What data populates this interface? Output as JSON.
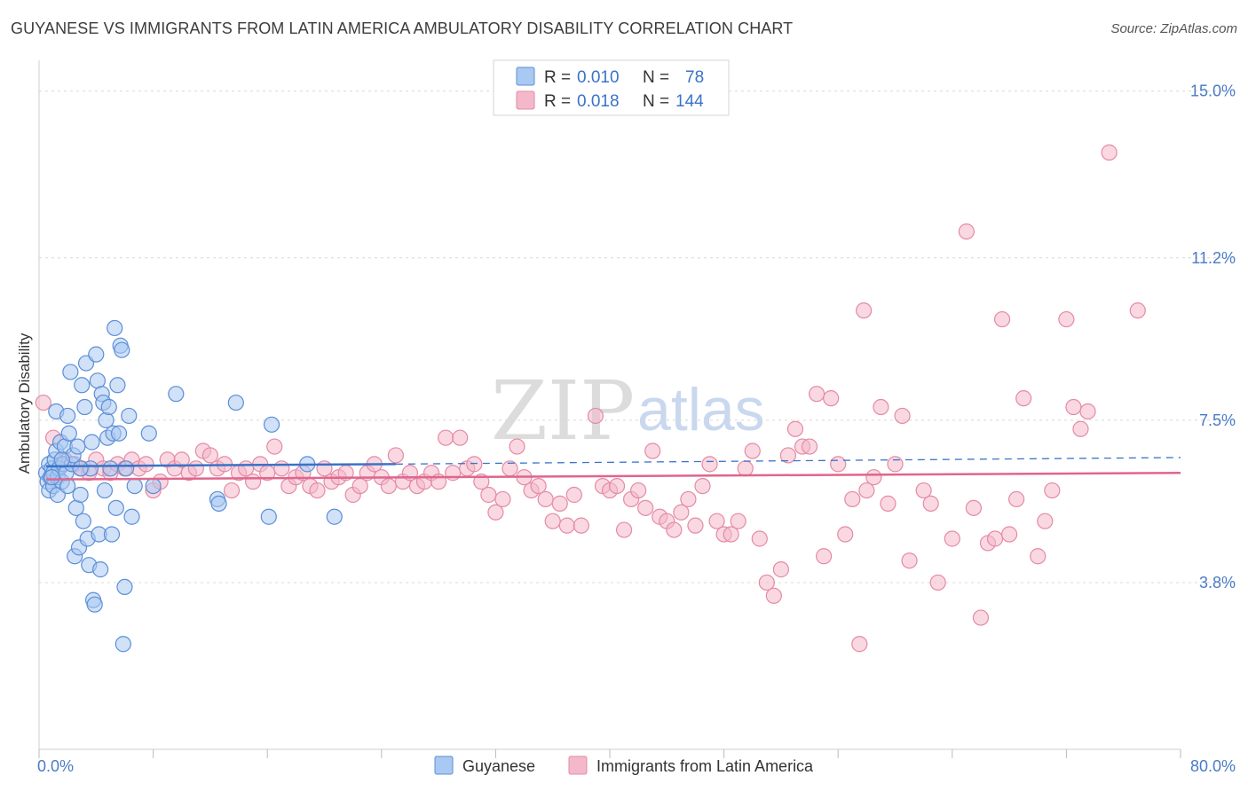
{
  "title": "GUYANESE VS IMMIGRANTS FROM LATIN AMERICA AMBULATORY DISABILITY CORRELATION CHART",
  "source": "Source: ZipAtlas.com",
  "watermark": {
    "zip": "ZIP",
    "atlas": "atlas"
  },
  "colors": {
    "blue_fill": "#a9c8f2",
    "blue_stroke": "#5b8fd6",
    "blue_line": "#3a73c8",
    "pink_fill": "#f4b8cb",
    "pink_stroke": "#e58aa6",
    "pink_line": "#e0658c",
    "grid": "#d8d8d8",
    "tick_label": "#4a7ac7"
  },
  "legend": {
    "rows": [
      {
        "r_label": "R =",
        "r_value": "0.010",
        "n_label": "N =",
        "n_value": "78"
      },
      {
        "r_label": "R =",
        "r_value": "0.018",
        "n_label": "N =",
        "n_value": "144"
      }
    ]
  },
  "bottom_legend": [
    "Guyanese",
    "Immigrants from Latin America"
  ],
  "chart_data": {
    "type": "scatter",
    "title": "GUYANESE VS IMMIGRANTS FROM LATIN AMERICA AMBULATORY DISABILITY CORRELATION CHART",
    "xlabel": "",
    "ylabel": "Ambulatory Disability",
    "xlim": [
      0,
      80
    ],
    "ylim": [
      0,
      15.5
    ],
    "x_tick_labels": [
      "0.0%",
      "80.0%"
    ],
    "y_ticks": [
      3.8,
      7.5,
      11.2,
      15.0
    ],
    "y_tick_labels": [
      "3.8%",
      "7.5%",
      "11.2%",
      "15.0%"
    ],
    "grid": true,
    "series": [
      {
        "name": "Guyanese",
        "r": 0.01,
        "n": 78,
        "trend": {
          "x": [
            0.5,
            25
          ],
          "y": [
            6.45,
            6.5
          ],
          "dashed_to": [
            80,
            6.65
          ]
        },
        "points": [
          [
            0.5,
            6.3
          ],
          [
            0.6,
            6.1
          ],
          [
            0.7,
            5.9
          ],
          [
            0.7,
            6.5
          ],
          [
            0.8,
            6.2
          ],
          [
            0.9,
            6.4
          ],
          [
            1.0,
            6.0
          ],
          [
            1.0,
            6.3
          ],
          [
            1.1,
            6.6
          ],
          [
            1.2,
            7.7
          ],
          [
            1.2,
            6.8
          ],
          [
            1.3,
            5.8
          ],
          [
            1.3,
            6.2
          ],
          [
            1.4,
            6.4
          ],
          [
            1.5,
            7.0
          ],
          [
            1.6,
            6.1
          ],
          [
            1.7,
            6.5
          ],
          [
            1.8,
            6.9
          ],
          [
            1.9,
            6.3
          ],
          [
            2.0,
            7.6
          ],
          [
            2.0,
            6.0
          ],
          [
            2.1,
            7.2
          ],
          [
            2.2,
            8.6
          ],
          [
            2.3,
            6.5
          ],
          [
            2.4,
            6.7
          ],
          [
            2.5,
            4.4
          ],
          [
            2.6,
            5.5
          ],
          [
            2.7,
            6.9
          ],
          [
            2.8,
            4.6
          ],
          [
            2.9,
            5.8
          ],
          [
            3.0,
            8.3
          ],
          [
            3.1,
            5.2
          ],
          [
            3.2,
            7.8
          ],
          [
            3.3,
            8.8
          ],
          [
            3.4,
            4.8
          ],
          [
            3.5,
            4.2
          ],
          [
            3.6,
            6.4
          ],
          [
            3.7,
            7.0
          ],
          [
            3.8,
            3.4
          ],
          [
            3.9,
            3.3
          ],
          [
            4.0,
            9.0
          ],
          [
            4.1,
            8.4
          ],
          [
            4.2,
            4.9
          ],
          [
            4.3,
            4.1
          ],
          [
            4.4,
            8.1
          ],
          [
            4.5,
            7.9
          ],
          [
            4.6,
            5.9
          ],
          [
            4.7,
            7.5
          ],
          [
            4.8,
            7.1
          ],
          [
            4.9,
            7.8
          ],
          [
            5.0,
            6.4
          ],
          [
            5.1,
            4.9
          ],
          [
            5.2,
            7.2
          ],
          [
            5.3,
            9.6
          ],
          [
            5.4,
            5.5
          ],
          [
            5.5,
            8.3
          ],
          [
            5.6,
            7.2
          ],
          [
            5.7,
            9.2
          ],
          [
            5.8,
            9.1
          ],
          [
            5.9,
            2.4
          ],
          [
            6.0,
            3.7
          ],
          [
            6.1,
            6.4
          ],
          [
            6.3,
            7.6
          ],
          [
            6.5,
            5.3
          ],
          [
            6.7,
            6.0
          ],
          [
            7.7,
            7.2
          ],
          [
            8.0,
            6.0
          ],
          [
            9.6,
            8.1
          ],
          [
            12.5,
            5.7
          ],
          [
            12.6,
            5.6
          ],
          [
            13.8,
            7.9
          ],
          [
            16.1,
            5.3
          ],
          [
            16.3,
            7.4
          ],
          [
            18.8,
            6.5
          ],
          [
            20.7,
            5.3
          ],
          [
            0.9,
            6.2
          ],
          [
            1.6,
            6.6
          ],
          [
            2.9,
            6.4
          ]
        ]
      },
      {
        "name": "Immigrants from Latin America",
        "r": 0.018,
        "n": 144,
        "trend": {
          "x": [
            0.5,
            80
          ],
          "y": [
            6.15,
            6.3
          ]
        },
        "points": [
          [
            0.3,
            7.9
          ],
          [
            1.0,
            7.1
          ],
          [
            1.8,
            6.6
          ],
          [
            2.5,
            6.5
          ],
          [
            3.0,
            6.4
          ],
          [
            3.5,
            6.3
          ],
          [
            4.0,
            6.6
          ],
          [
            4.5,
            6.4
          ],
          [
            5.0,
            6.3
          ],
          [
            5.5,
            6.5
          ],
          [
            6.0,
            6.4
          ],
          [
            6.5,
            6.6
          ],
          [
            7.0,
            6.4
          ],
          [
            7.5,
            6.5
          ],
          [
            8.0,
            5.9
          ],
          [
            8.5,
            6.1
          ],
          [
            9.0,
            6.6
          ],
          [
            9.5,
            6.4
          ],
          [
            10.0,
            6.6
          ],
          [
            10.5,
            6.3
          ],
          [
            11.0,
            6.4
          ],
          [
            11.5,
            6.8
          ],
          [
            12.0,
            6.7
          ],
          [
            12.5,
            6.4
          ],
          [
            13.0,
            6.5
          ],
          [
            13.5,
            5.9
          ],
          [
            14.0,
            6.3
          ],
          [
            14.5,
            6.4
          ],
          [
            15.0,
            6.1
          ],
          [
            15.5,
            6.5
          ],
          [
            16.0,
            6.3
          ],
          [
            16.5,
            6.9
          ],
          [
            17.0,
            6.4
          ],
          [
            17.5,
            6.0
          ],
          [
            18.0,
            6.2
          ],
          [
            18.5,
            6.3
          ],
          [
            19.0,
            6.0
          ],
          [
            19.5,
            5.9
          ],
          [
            20.0,
            6.4
          ],
          [
            20.5,
            6.1
          ],
          [
            21.0,
            6.2
          ],
          [
            21.5,
            6.3
          ],
          [
            22.0,
            5.8
          ],
          [
            22.5,
            6.0
          ],
          [
            23.0,
            6.3
          ],
          [
            23.5,
            6.5
          ],
          [
            24.0,
            6.2
          ],
          [
            24.5,
            6.0
          ],
          [
            25.0,
            6.7
          ],
          [
            25.5,
            6.1
          ],
          [
            26.0,
            6.3
          ],
          [
            26.5,
            6.0
          ],
          [
            27.0,
            6.1
          ],
          [
            27.5,
            6.3
          ],
          [
            28.0,
            6.1
          ],
          [
            28.5,
            7.1
          ],
          [
            29.0,
            6.3
          ],
          [
            29.5,
            7.1
          ],
          [
            30.0,
            6.4
          ],
          [
            30.5,
            6.5
          ],
          [
            31.0,
            6.1
          ],
          [
            31.5,
            5.8
          ],
          [
            32.0,
            5.4
          ],
          [
            32.5,
            5.7
          ],
          [
            33.0,
            6.4
          ],
          [
            33.5,
            6.9
          ],
          [
            34.0,
            6.2
          ],
          [
            34.5,
            5.9
          ],
          [
            35.0,
            6.0
          ],
          [
            35.5,
            5.7
          ],
          [
            36.0,
            5.2
          ],
          [
            36.5,
            5.6
          ],
          [
            37.0,
            5.1
          ],
          [
            37.5,
            5.8
          ],
          [
            38.0,
            5.1
          ],
          [
            39.0,
            7.6
          ],
          [
            39.5,
            6.0
          ],
          [
            40.0,
            5.9
          ],
          [
            40.5,
            6.0
          ],
          [
            41.0,
            5.0
          ],
          [
            41.5,
            5.7
          ],
          [
            42.0,
            5.9
          ],
          [
            42.5,
            5.5
          ],
          [
            43.0,
            6.8
          ],
          [
            43.5,
            5.3
          ],
          [
            44.0,
            5.2
          ],
          [
            44.5,
            5.0
          ],
          [
            45.0,
            5.4
          ],
          [
            45.5,
            5.7
          ],
          [
            46.0,
            5.1
          ],
          [
            46.5,
            6.0
          ],
          [
            47.0,
            6.5
          ],
          [
            47.5,
            5.2
          ],
          [
            48.0,
            4.9
          ],
          [
            48.5,
            4.9
          ],
          [
            49.0,
            5.2
          ],
          [
            49.5,
            6.4
          ],
          [
            50.0,
            6.8
          ],
          [
            50.5,
            4.8
          ],
          [
            51.0,
            3.8
          ],
          [
            51.5,
            3.5
          ],
          [
            52.0,
            4.1
          ],
          [
            52.5,
            6.7
          ],
          [
            53.0,
            7.3
          ],
          [
            53.5,
            6.9
          ],
          [
            54.0,
            6.9
          ],
          [
            54.5,
            8.1
          ],
          [
            55.0,
            4.4
          ],
          [
            55.5,
            8.0
          ],
          [
            56.0,
            6.5
          ],
          [
            56.5,
            4.9
          ],
          [
            57.0,
            5.7
          ],
          [
            57.5,
            2.4
          ],
          [
            57.8,
            10.0
          ],
          [
            58.0,
            5.9
          ],
          [
            58.5,
            6.2
          ],
          [
            59.0,
            7.8
          ],
          [
            59.5,
            5.6
          ],
          [
            60.0,
            6.5
          ],
          [
            60.5,
            7.6
          ],
          [
            61.0,
            4.3
          ],
          [
            62.0,
            5.9
          ],
          [
            62.5,
            5.6
          ],
          [
            63.0,
            3.8
          ],
          [
            64.0,
            4.8
          ],
          [
            65.0,
            11.8
          ],
          [
            65.5,
            5.5
          ],
          [
            66.0,
            3.0
          ],
          [
            66.5,
            4.7
          ],
          [
            67.0,
            4.8
          ],
          [
            67.5,
            9.8
          ],
          [
            68.0,
            4.9
          ],
          [
            68.5,
            5.7
          ],
          [
            69.0,
            8.0
          ],
          [
            70.0,
            4.4
          ],
          [
            70.5,
            5.2
          ],
          [
            71.0,
            5.9
          ],
          [
            72.0,
            9.8
          ],
          [
            72.5,
            7.8
          ],
          [
            73.0,
            7.3
          ],
          [
            73.5,
            7.7
          ],
          [
            75.0,
            13.6
          ],
          [
            77.0,
            10.0
          ],
          [
            1.5,
            6.5
          ]
        ]
      }
    ]
  }
}
